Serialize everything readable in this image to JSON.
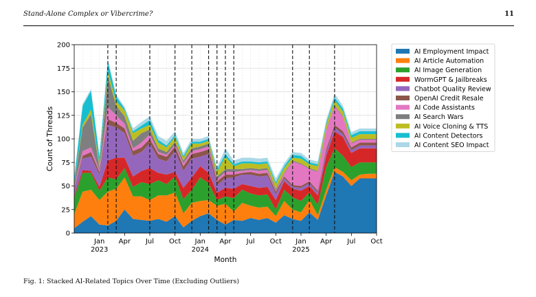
{
  "header": {
    "running_title": "Stand-Alone Complex or Vibercrime?",
    "page_number": "11"
  },
  "caption": "Fig. 1: Stacked AI-Related Topics Over Time (Excluding Outliers)",
  "chart_data": {
    "type": "area",
    "stacked": true,
    "xlabel": "Month",
    "ylabel": "Count of Threads",
    "ylim": [
      0,
      200
    ],
    "yticks": [
      0,
      25,
      50,
      75,
      100,
      125,
      150,
      175,
      200
    ],
    "x": [
      "2022-10",
      "2022-11",
      "2022-12",
      "2023-01",
      "2023-02",
      "2023-03",
      "2023-04",
      "2023-05",
      "2023-06",
      "2023-07",
      "2023-08",
      "2023-09",
      "2023-10",
      "2023-11",
      "2023-12",
      "2024-01",
      "2024-02",
      "2024-03",
      "2024-04",
      "2024-05",
      "2024-06",
      "2024-07",
      "2024-08",
      "2024-09",
      "2024-10",
      "2024-11",
      "2024-12",
      "2025-01",
      "2025-02",
      "2025-03",
      "2025-04",
      "2025-05",
      "2025-06",
      "2025-07",
      "2025-08",
      "2025-09",
      "2025-10"
    ],
    "xticks": [
      {
        "x": "2023-01",
        "label": "Jan"
      },
      {
        "x": "2023-04",
        "label": "Apr"
      },
      {
        "x": "2023-07",
        "label": "Jul"
      },
      {
        "x": "2023-10",
        "label": "Oct"
      },
      {
        "x": "2024-01",
        "label": "Jan"
      },
      {
        "x": "2024-04",
        "label": "Apr"
      },
      {
        "x": "2024-07",
        "label": "Jul"
      },
      {
        "x": "2024-10",
        "label": "Oct"
      },
      {
        "x": "2025-01",
        "label": "Jan"
      },
      {
        "x": "2025-04",
        "label": "Apr"
      },
      {
        "x": "2025-07",
        "label": "Jul"
      },
      {
        "x": "2025-10",
        "label": "Oct"
      }
    ],
    "year_labels": [
      {
        "x": "2023-01",
        "label": "2023"
      },
      {
        "x": "2024-01",
        "label": "2024"
      },
      {
        "x": "2025-01",
        "label": "2025"
      }
    ],
    "vlines": [
      "2023-02",
      "2023-03",
      "2023-07",
      "2023-10",
      "2023-12",
      "2024-02",
      "2024-03",
      "2024-04",
      "2024-05",
      "2024-12",
      "2025-02",
      "2025-05"
    ],
    "grid": true,
    "legend_position": "outside-right",
    "series": [
      {
        "name": "AI Employment Impact",
        "color": "#1f77b4",
        "values": [
          5,
          12,
          18,
          9,
          8,
          13,
          25,
          15,
          14,
          13,
          15,
          12,
          18,
          6,
          13,
          18,
          21,
          14,
          9,
          14,
          13,
          16,
          14,
          16,
          11,
          19,
          15,
          13,
          22,
          14,
          40,
          65,
          60,
          50,
          58,
          58,
          58
        ]
      },
      {
        "name": "AI Article Automation",
        "color": "#ff7f0e",
        "values": [
          15,
          32,
          28,
          26,
          36,
          34,
          34,
          24,
          25,
          22,
          25,
          28,
          25,
          15,
          19,
          16,
          14,
          15,
          22,
          9,
          19,
          13,
          13,
          12,
          7,
          15,
          10,
          9,
          13,
          5,
          6,
          5,
          5,
          6,
          4,
          5,
          5
        ]
      },
      {
        "name": "AI Image Generation",
        "color": "#2ca02c",
        "values": [
          18,
          20,
          18,
          10,
          15,
          10,
          10,
          10,
          15,
          17,
          16,
          12,
          17,
          15,
          14,
          25,
          18,
          6,
          8,
          14,
          14,
          13,
          13,
          13,
          7,
          12,
          13,
          12,
          8,
          11,
          24,
          20,
          17,
          14,
          13,
          12,
          12
        ]
      },
      {
        "name": "WormGPT & Jailbreaks",
        "color": "#d62728",
        "values": [
          2,
          3,
          2,
          4,
          18,
          23,
          11,
          11,
          12,
          17,
          8,
          10,
          5,
          12,
          13,
          12,
          11,
          8,
          9,
          10,
          6,
          8,
          8,
          8,
          10,
          9,
          9,
          11,
          7,
          10,
          12,
          18,
          20,
          15,
          15,
          15,
          15
        ]
      },
      {
        "name": "Chatbot Quality Review",
        "color": "#9467bd",
        "values": [
          5,
          12,
          15,
          13,
          38,
          32,
          26,
          22,
          20,
          26,
          15,
          14,
          22,
          18,
          20,
          10,
          20,
          8,
          10,
          12,
          10,
          12,
          12,
          12,
          6,
          3,
          2,
          3,
          3,
          3,
          4,
          4,
          3,
          3,
          3,
          3,
          3
        ]
      },
      {
        "name": "OpenAI Credit Resale",
        "color": "#8c564b",
        "values": [
          2,
          3,
          5,
          3,
          6,
          5,
          5,
          5,
          5,
          5,
          5,
          5,
          5,
          5,
          5,
          5,
          5,
          4,
          4,
          3,
          2,
          3,
          3,
          3,
          3,
          2,
          2,
          2,
          2,
          2,
          3,
          3,
          3,
          3,
          3,
          3,
          3
        ]
      },
      {
        "name": "AI Code Assistants",
        "color": "#e377c2",
        "values": [
          2,
          5,
          5,
          2,
          13,
          8,
          5,
          3,
          5,
          5,
          2,
          2,
          2,
          3,
          3,
          3,
          3,
          2,
          3,
          3,
          2,
          2,
          3,
          3,
          1,
          3,
          25,
          23,
          13,
          20,
          20,
          20,
          15,
          4,
          3,
          3,
          3
        ]
      },
      {
        "name": "AI Search Wars",
        "color": "#7f7f7f",
        "values": [
          3,
          25,
          35,
          3,
          33,
          10,
          8,
          8,
          10,
          5,
          4,
          3,
          3,
          3,
          3,
          3,
          3,
          3,
          3,
          3,
          2,
          2,
          2,
          2,
          2,
          1,
          1,
          1,
          1,
          1,
          1,
          1,
          1,
          1,
          1,
          1,
          1
        ]
      },
      {
        "name": "AI Voice Cloning & TTS",
        "color": "#bcbd22",
        "values": [
          1,
          3,
          5,
          3,
          5,
          5,
          6,
          8,
          5,
          5,
          6,
          5,
          5,
          3,
          5,
          3,
          3,
          5,
          13,
          3,
          6,
          5,
          5,
          5,
          5,
          5,
          3,
          5,
          4,
          5,
          5,
          5,
          5,
          5,
          5,
          5,
          5
        ]
      },
      {
        "name": "AI Content Detectors",
        "color": "#17becf",
        "values": [
          5,
          20,
          20,
          8,
          10,
          5,
          2,
          2,
          3,
          5,
          3,
          2,
          2,
          2,
          2,
          2,
          2,
          2,
          3,
          2,
          2,
          2,
          2,
          2,
          2,
          2,
          3,
          3,
          2,
          2,
          2,
          3,
          3,
          3,
          3,
          3,
          3
        ]
      },
      {
        "name": "AI Content SEO Impact",
        "color": "#aad8e6",
        "values": [
          2,
          2,
          2,
          2,
          3,
          2,
          2,
          3,
          4,
          4,
          4,
          5,
          4,
          3,
          3,
          3,
          3,
          3,
          6,
          4,
          4,
          4,
          4,
          4,
          4,
          3,
          3,
          3,
          3,
          3,
          3,
          4,
          3,
          3,
          3,
          3,
          3
        ]
      }
    ]
  }
}
